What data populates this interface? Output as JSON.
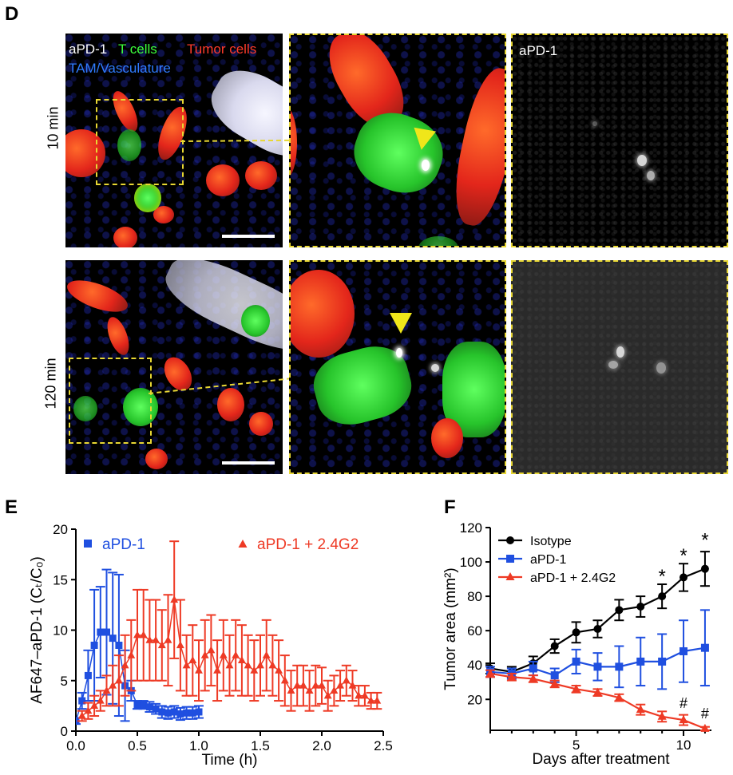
{
  "panel_d": {
    "letter": "D",
    "legend_line1": [
      "aPD-1",
      "T cells",
      "Tumor cells"
    ],
    "legend_line2": "TAM/Vasculature",
    "gray_label": "aPD-1",
    "row_labels": [
      "10 min",
      "120 min"
    ]
  },
  "panel_e": {
    "letter": "E"
  },
  "panel_f": {
    "letter": "F"
  },
  "colors": {
    "apd1_label": "#ffffff",
    "tcells": "#3cff3c",
    "tumor": "#ff3b2a",
    "tam": "#2f7cff",
    "blue_series": "#1f4fe0",
    "red_series": "#ee3a25",
    "black_series": "#000000",
    "dashed_box": "#e8d733"
  },
  "chart_data": [
    {
      "type": "scatter",
      "xlabel": "Time (h)",
      "ylabel": "AF647–aPD-1 (Cₜ/C₀)",
      "xlim": [
        0,
        2.5
      ],
      "ylim": [
        0,
        20
      ],
      "xticks": [
        "0.0",
        "0.5",
        "1.0",
        "1.5",
        "2.0",
        "2.5"
      ],
      "yticks": [
        "0",
        "5",
        "10",
        "15",
        "20"
      ],
      "grid": false,
      "series": [
        {
          "name": "aPD-1",
          "color": "#1f4fe0",
          "marker": "square",
          "x": [
            0.0,
            0.05,
            0.1,
            0.15,
            0.2,
            0.25,
            0.3,
            0.35,
            0.4,
            0.45,
            0.5,
            0.55,
            0.6,
            0.65,
            0.7,
            0.75,
            0.8,
            0.85,
            0.9,
            0.95,
            1.0
          ],
          "y": [
            1.0,
            3.0,
            5.5,
            8.5,
            9.8,
            9.8,
            9.2,
            8.5,
            4.5,
            4.0,
            2.6,
            2.6,
            2.4,
            2.2,
            1.9,
            1.8,
            1.9,
            1.7,
            1.8,
            1.8,
            1.9
          ],
          "err": [
            0.3,
            0.8,
            2.5,
            5.5,
            4.5,
            6.2,
            6.5,
            7.0,
            3.5,
            1.0,
            0.4,
            0.4,
            0.5,
            0.5,
            0.6,
            0.6,
            0.6,
            0.6,
            0.6,
            0.6,
            0.6
          ]
        },
        {
          "name": "aPD-1 + 2.4G2",
          "color": "#ee3a25",
          "marker": "triangle",
          "x": [
            0.05,
            0.1,
            0.15,
            0.2,
            0.25,
            0.3,
            0.35,
            0.4,
            0.45,
            0.5,
            0.55,
            0.6,
            0.65,
            0.7,
            0.75,
            0.8,
            0.85,
            0.9,
            0.95,
            1.0,
            1.05,
            1.1,
            1.15,
            1.2,
            1.25,
            1.3,
            1.35,
            1.4,
            1.45,
            1.5,
            1.55,
            1.6,
            1.65,
            1.7,
            1.75,
            1.8,
            1.85,
            1.9,
            1.95,
            2.0,
            2.05,
            2.1,
            2.15,
            2.2,
            2.25,
            2.3,
            2.35,
            2.4,
            2.45
          ],
          "y": [
            1.5,
            2.0,
            2.5,
            3.0,
            4.0,
            4.5,
            5.0,
            6.5,
            7.5,
            9.5,
            9.5,
            9.0,
            9.0,
            8.5,
            9.0,
            13.0,
            8.5,
            6.5,
            7.0,
            6.0,
            7.5,
            8.0,
            6.0,
            7.5,
            6.5,
            7.5,
            7.0,
            6.5,
            6.0,
            6.5,
            7.5,
            6.5,
            6.0,
            5.0,
            4.0,
            4.5,
            4.5,
            4.0,
            4.5,
            4.5,
            3.5,
            4.0,
            4.5,
            5.0,
            4.5,
            3.5,
            3.5,
            3.0,
            3.0
          ],
          "err": [
            0.5,
            0.8,
            1.0,
            1.0,
            1.5,
            2.0,
            2.5,
            3.0,
            3.5,
            4.5,
            4.5,
            4.0,
            4.0,
            3.5,
            4.5,
            5.8,
            4.5,
            3.0,
            3.5,
            3.0,
            3.5,
            3.5,
            3.0,
            3.5,
            3.0,
            3.5,
            3.5,
            3.0,
            3.0,
            3.0,
            3.5,
            3.0,
            3.0,
            2.5,
            2.0,
            2.0,
            2.0,
            2.0,
            2.0,
            1.8,
            1.5,
            1.5,
            1.5,
            1.5,
            1.5,
            1.0,
            1.0,
            0.8,
            0.8
          ]
        }
      ]
    },
    {
      "type": "line",
      "xlabel": "Days after treatment",
      "ylabel": "Tumor area (mm²)",
      "xlim": [
        1,
        11.3
      ],
      "ylim": [
        2,
        120
      ],
      "xticks": [
        "5",
        "10"
      ],
      "xtick_values": [
        5,
        10
      ],
      "yticks": [
        "20",
        "40",
        "60",
        "80",
        "100",
        "120"
      ],
      "ytick_values": [
        20,
        40,
        60,
        80,
        100,
        120
      ],
      "legend_position": "top-left",
      "annotations": [
        {
          "text": "*",
          "x": 9,
          "y": 88
        },
        {
          "text": "*",
          "x": 10,
          "y": 100
        },
        {
          "text": "*",
          "x": 11,
          "y": 109
        },
        {
          "text": "#",
          "x": 10,
          "y": 15
        },
        {
          "text": "#",
          "x": 11,
          "y": 9
        }
      ],
      "series": [
        {
          "name": "Isotype",
          "color": "#000000",
          "marker": "circle",
          "x": [
            1,
            2,
            3,
            4,
            5,
            6,
            7,
            8,
            9,
            10,
            11
          ],
          "y": [
            38,
            36,
            41,
            51,
            59,
            61,
            72,
            74,
            80,
            91,
            96
          ],
          "err": [
            3,
            3,
            4,
            4,
            6,
            5,
            6,
            6,
            7,
            8,
            10
          ]
        },
        {
          "name": "aPD-1",
          "color": "#1f4fe0",
          "marker": "square",
          "x": [
            1,
            2,
            3,
            4,
            5,
            6,
            7,
            8,
            9,
            10,
            11
          ],
          "y": [
            36,
            35,
            38,
            34,
            42,
            39,
            39,
            42,
            42,
            48,
            50
          ],
          "err": [
            3,
            3,
            4,
            4,
            7,
            8,
            12,
            14,
            16,
            18,
            22
          ]
        },
        {
          "name": "aPD-1 + 2.4G2",
          "color": "#ee3a25",
          "marker": "triangle",
          "x": [
            1,
            2,
            3,
            4,
            5,
            6,
            7,
            8,
            9,
            10,
            11
          ],
          "y": [
            35,
            33,
            32,
            29,
            26,
            24,
            21,
            14,
            10,
            8,
            3
          ],
          "err": [
            2,
            2,
            2,
            2,
            2,
            2,
            2,
            3,
            3,
            3,
            1
          ]
        }
      ]
    }
  ]
}
